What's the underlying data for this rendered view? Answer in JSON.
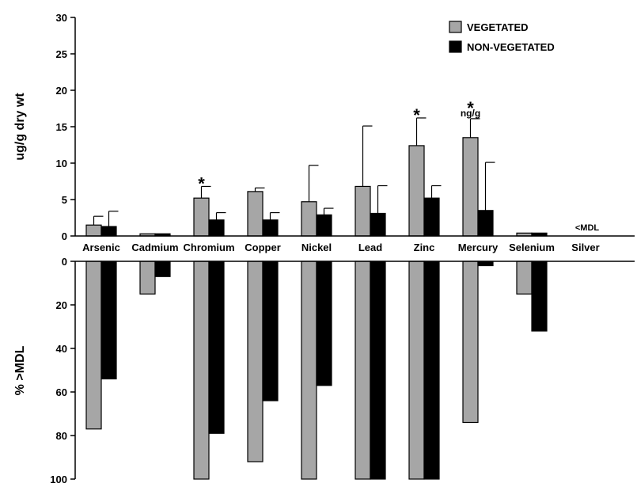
{
  "chart_data": {
    "type": "bar",
    "categories": [
      "Arsenic",
      "Cadmium",
      "Chromium",
      "Copper",
      "Nickel",
      "Lead",
      "Zinc",
      "Mercury",
      "Selenium",
      "Silver"
    ],
    "legend": {
      "placement": "top-right"
    },
    "series": [
      {
        "name": "VEGETATED",
        "color": "#a6a6a6"
      },
      {
        "name": "NON-VEGETATED",
        "color": "#000000"
      }
    ],
    "top_panel": {
      "ylabel": "ug/g dry wt",
      "ylim": [
        0,
        30
      ],
      "yticks": [
        "0",
        "5",
        "10",
        "15",
        "20",
        "25",
        "30"
      ],
      "values": {
        "VEGETATED": [
          1.5,
          0.3,
          5.2,
          6.1,
          4.7,
          6.8,
          12.4,
          13.5,
          0.4,
          null
        ],
        "NON-VEGETATED": [
          1.3,
          0.3,
          2.2,
          2.2,
          2.9,
          3.1,
          5.2,
          3.5,
          0.4,
          null
        ]
      },
      "errors": {
        "VEGETATED": [
          2.7,
          null,
          6.8,
          6.6,
          9.7,
          15.1,
          16.2,
          16.1,
          null,
          null
        ],
        "NON-VEGETATED": [
          3.4,
          null,
          3.2,
          3.2,
          3.8,
          6.9,
          6.9,
          10.1,
          null,
          null
        ]
      },
      "significance": [
        "",
        "",
        "*",
        "",
        "",
        "",
        "*",
        "*",
        "",
        ""
      ],
      "annotations": [
        {
          "text": "ng/g",
          "category": "Mercury"
        },
        {
          "text": "<MDL",
          "category": "Silver"
        }
      ]
    },
    "bottom_panel": {
      "ylabel": "% >MDL",
      "ylim": [
        0,
        100
      ],
      "yticks": [
        "0",
        "20",
        "40",
        "60",
        "80",
        "100"
      ],
      "values": {
        "VEGETATED": [
          77,
          15,
          100,
          92,
          100,
          100,
          100,
          74,
          15,
          0
        ],
        "NON-VEGETATED": [
          54,
          7,
          79,
          64,
          57,
          100,
          100,
          2,
          32,
          0
        ]
      }
    }
  }
}
